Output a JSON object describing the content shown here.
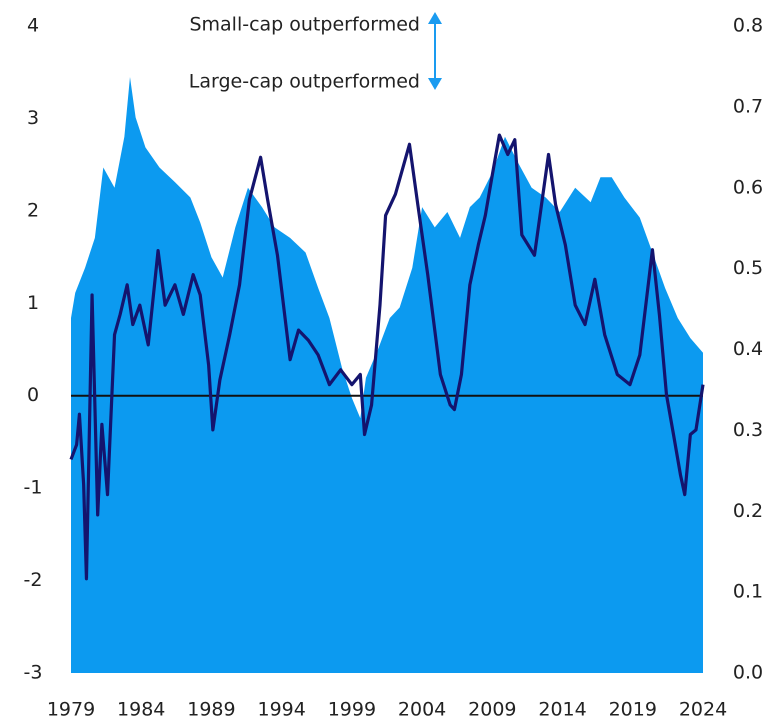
{
  "chart_data": {
    "type": "line-area",
    "annotations": [
      "Small-cap outperformed",
      "Large-cap outperformed"
    ],
    "annotation_color": "#1a9bf0",
    "xlim": [
      1979,
      2024
    ],
    "xticks": [
      1979,
      1984,
      1989,
      1994,
      1999,
      2004,
      2009,
      2014,
      2019,
      2024
    ],
    "ylim": [
      -3,
      4
    ],
    "yticks": [
      -3,
      -2,
      -1,
      0,
      1,
      2,
      3,
      4
    ],
    "y2lim": [
      0,
      0.8
    ],
    "y2ticks": [
      {
        "value": 0,
        "label": "0.0"
      },
      0.1,
      0.2,
      0.3,
      0.4,
      0.5,
      0.6,
      0.7,
      0.8
    ],
    "series": [
      {
        "kind": "area",
        "axis": "y2",
        "color": "#0c9af0",
        "x": [
          1979.0,
          1979.3,
          1980.0,
          1980.7,
          1981.3,
          1982.1,
          1982.8,
          1983.2,
          1983.6,
          1984.3,
          1985.3,
          1986.4,
          1987.5,
          1988.2,
          1989.0,
          1989.8,
          1990.7,
          1991.6,
          1992.6,
          1993.5,
          1994.6,
          1995.7,
          1996.6,
          1997.4,
          1998.3,
          1999.0,
          1999.6,
          2000.0,
          2000.9,
          2001.7,
          2002.4,
          2003.3,
          2004.0,
          2004.9,
          2005.8,
          2006.7,
          2007.4,
          2008.1,
          2009.0,
          2009.9,
          2010.8,
          2011.8,
          2012.8,
          2013.8,
          2014.9,
          2016.0,
          2016.7,
          2017.5,
          2018.4,
          2019.5,
          2020.4,
          2021.3,
          2022.2,
          2023.1,
          2024.0
        ],
        "values": [
          0.439,
          0.47,
          0.501,
          0.538,
          0.625,
          0.6,
          0.663,
          0.737,
          0.687,
          0.65,
          0.625,
          0.607,
          0.588,
          0.557,
          0.514,
          0.489,
          0.551,
          0.6,
          0.576,
          0.551,
          0.538,
          0.52,
          0.476,
          0.439,
          0.377,
          0.34,
          0.315,
          0.365,
          0.402,
          0.439,
          0.452,
          0.501,
          0.576,
          0.551,
          0.57,
          0.538,
          0.576,
          0.588,
          0.619,
          0.663,
          0.632,
          0.6,
          0.588,
          0.57,
          0.6,
          0.582,
          0.613,
          0.613,
          0.588,
          0.563,
          0.52,
          0.476,
          0.439,
          0.414,
          0.396
        ]
      },
      {
        "kind": "line",
        "axis": "y",
        "color": "#14146e",
        "x": [
          1979.0,
          1979.4,
          1979.6,
          1979.9,
          1980.1,
          1980.5,
          1980.9,
          1981.2,
          1981.6,
          1982.1,
          1982.5,
          1983.0,
          1983.4,
          1983.9,
          1984.5,
          1985.2,
          1985.7,
          1986.4,
          1987.0,
          1987.7,
          1988.2,
          1988.8,
          1989.1,
          1989.6,
          1990.3,
          1991.0,
          1991.7,
          1992.5,
          1993.0,
          1993.7,
          1994.6,
          1995.2,
          1995.9,
          1996.6,
          1997.4,
          1998.2,
          1999.0,
          1999.6,
          1999.9,
          2000.4,
          2001.0,
          2001.4,
          2002.1,
          2002.6,
          2003.1,
          2003.7,
          2004.4,
          2005.3,
          2006.0,
          2006.3,
          2006.8,
          2007.4,
          2008.0,
          2008.5,
          2009.0,
          2009.5,
          2010.1,
          2010.6,
          2011.1,
          2012.0,
          2013.0,
          2013.5,
          2014.2,
          2014.9,
          2015.6,
          2016.3,
          2017.0,
          2017.9,
          2018.8,
          2019.5,
          2020.4,
          2020.9,
          2021.4,
          2021.9,
          2022.4,
          2022.7,
          2023.1,
          2023.5,
          2024.0
        ],
        "values": [
          -0.69,
          -0.53,
          -0.2,
          -0.96,
          -1.98,
          1.09,
          -1.29,
          -0.31,
          -1.07,
          0.66,
          0.88,
          1.2,
          0.77,
          0.98,
          0.55,
          1.57,
          0.98,
          1.2,
          0.88,
          1.31,
          1.09,
          0.33,
          -0.37,
          0.17,
          0.66,
          1.2,
          2.12,
          2.58,
          2.12,
          1.52,
          0.39,
          0.71,
          0.6,
          0.44,
          0.12,
          0.28,
          0.12,
          0.23,
          -0.42,
          -0.1,
          0.98,
          1.95,
          2.18,
          2.45,
          2.72,
          2.06,
          1.31,
          0.23,
          -0.1,
          -0.15,
          0.23,
          1.2,
          1.63,
          1.95,
          2.39,
          2.82,
          2.61,
          2.77,
          1.74,
          1.52,
          2.61,
          2.07,
          1.63,
          0.98,
          0.77,
          1.26,
          0.66,
          0.23,
          0.12,
          0.44,
          1.58,
          0.87,
          0.01,
          -0.42,
          -0.86,
          -1.07,
          -0.42,
          -0.37,
          0.12
        ]
      }
    ]
  }
}
